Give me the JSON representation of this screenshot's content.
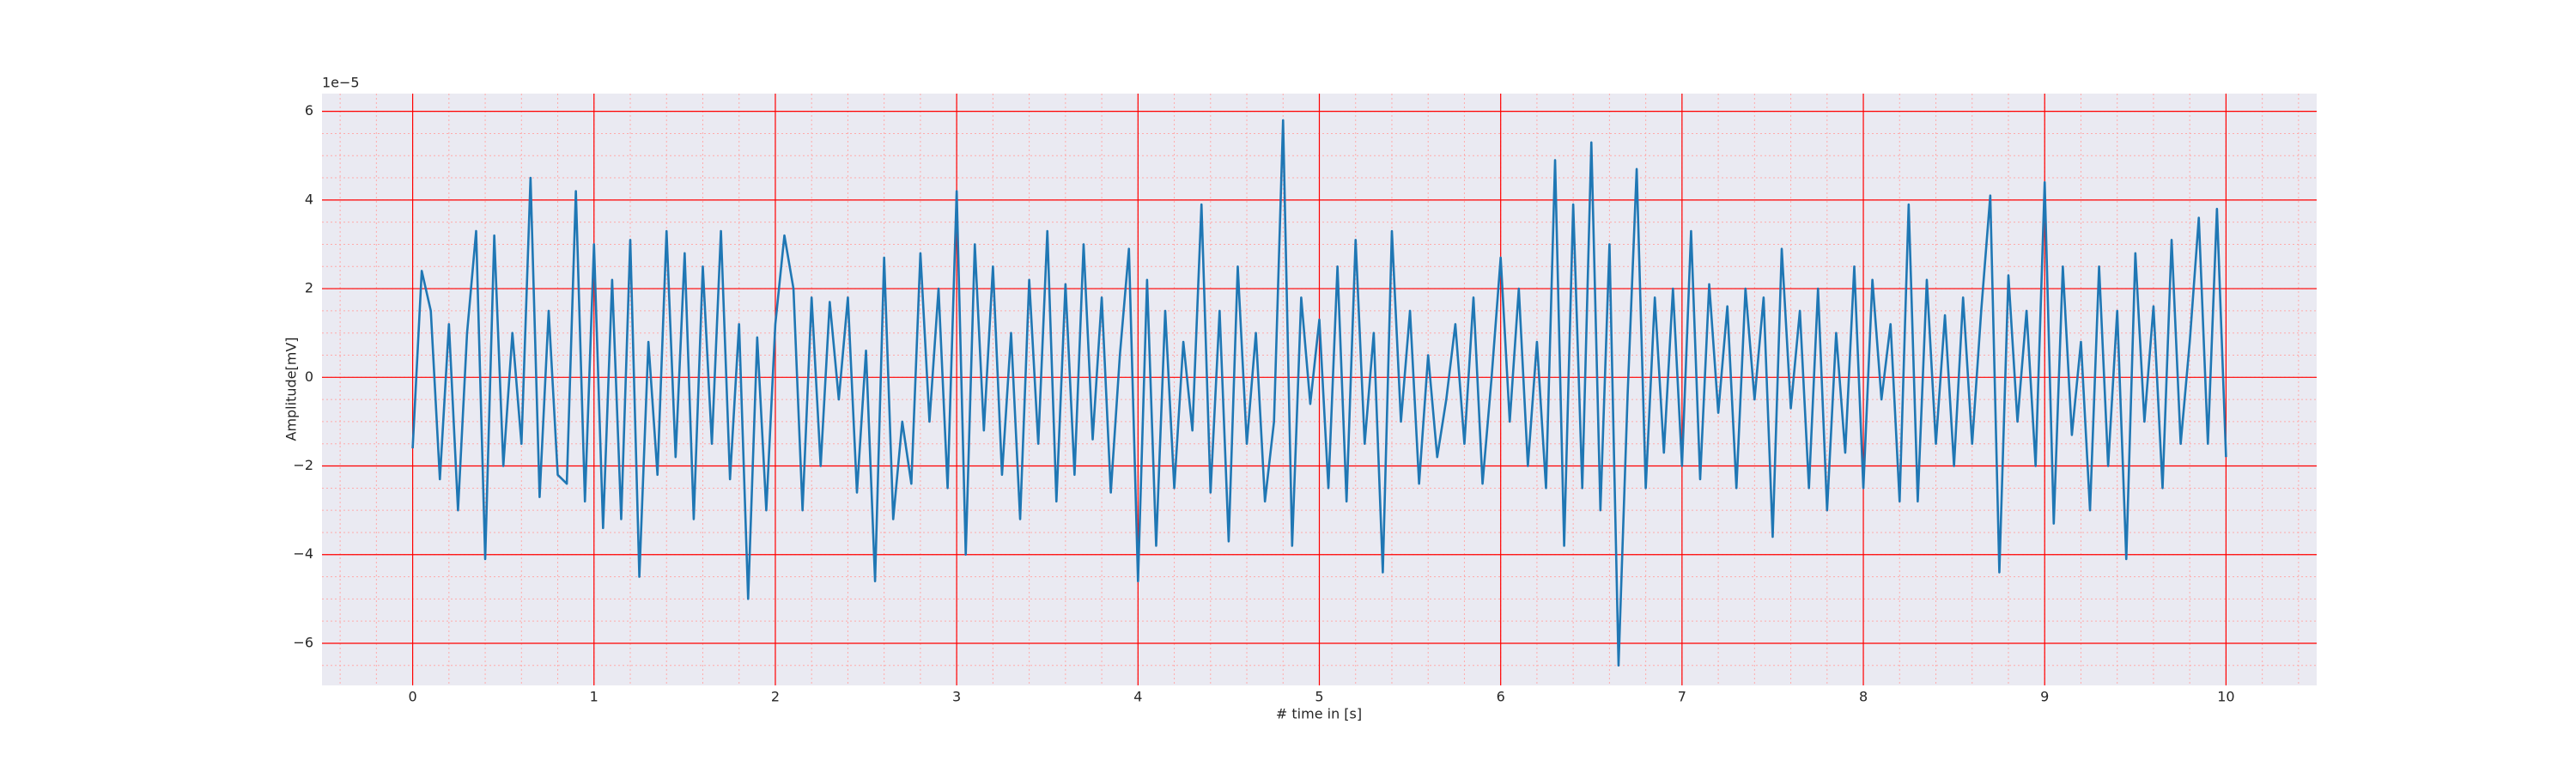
{
  "chart_data": {
    "type": "line",
    "xlabel": "# time in [s]",
    "ylabel": "Amplitude[mV]",
    "y_offset_label": "1e−5",
    "color": "#1f77b4",
    "background": "#eaeaf2",
    "grid": true,
    "grid_color": "#ff0000",
    "minor_grid": {
      "x_step": 0.2,
      "y_step": 0.5,
      "color": "#ffaaaa"
    },
    "xlim": [
      -0.5,
      10.5
    ],
    "ylim": [
      -6.95,
      6.4
    ],
    "xticks": [
      0,
      1,
      2,
      3,
      4,
      5,
      6,
      7,
      8,
      9,
      10
    ],
    "yticks": [
      {
        "value": -6,
        "label": "−6"
      },
      {
        "value": -4,
        "label": "−4"
      },
      {
        "value": -2,
        "label": "−2"
      },
      0,
      2,
      4,
      6
    ],
    "x": [
      0,
      0.05,
      0.1,
      0.15,
      0.2,
      0.25,
      0.3,
      0.35,
      0.4,
      0.45,
      0.5,
      0.55,
      0.6,
      0.65,
      0.7,
      0.75,
      0.8,
      0.85,
      0.9,
      0.95,
      1,
      1.05,
      1.1,
      1.15,
      1.2,
      1.25,
      1.3,
      1.35,
      1.4,
      1.45,
      1.5,
      1.55,
      1.6,
      1.65,
      1.7,
      1.75,
      1.8,
      1.85,
      1.9,
      1.95,
      2,
      2.05,
      2.1,
      2.15,
      2.2,
      2.25,
      2.3,
      2.35,
      2.4,
      2.45,
      2.5,
      2.55,
      2.6,
      2.65,
      2.7,
      2.75,
      2.8,
      2.85,
      2.9,
      2.95,
      3,
      3.05,
      3.1,
      3.15,
      3.2,
      3.25,
      3.3,
      3.35,
      3.4,
      3.45,
      3.5,
      3.55,
      3.6,
      3.65,
      3.7,
      3.75,
      3.8,
      3.85,
      3.9,
      3.95,
      4,
      4.05,
      4.1,
      4.15,
      4.2,
      4.25,
      4.3,
      4.35,
      4.4,
      4.45,
      4.5,
      4.55,
      4.6,
      4.65,
      4.7,
      4.75,
      4.8,
      4.85,
      4.9,
      4.95,
      5,
      5.05,
      5.1,
      5.15,
      5.2,
      5.25,
      5.3,
      5.35,
      5.4,
      5.45,
      5.5,
      5.55,
      5.6,
      5.65,
      5.7,
      5.75,
      5.8,
      5.85,
      5.9,
      5.95,
      6,
      6.05,
      6.1,
      6.15,
      6.2,
      6.25,
      6.3,
      6.35,
      6.4,
      6.45,
      6.5,
      6.55,
      6.6,
      6.65,
      6.7,
      6.75,
      6.8,
      6.85,
      6.9,
      6.95,
      7,
      7.05,
      7.1,
      7.15,
      7.2,
      7.25,
      7.3,
      7.35,
      7.4,
      7.45,
      7.5,
      7.55,
      7.6,
      7.65,
      7.7,
      7.75,
      7.8,
      7.85,
      7.9,
      7.95,
      8,
      8.05,
      8.1,
      8.15,
      8.2,
      8.25,
      8.3,
      8.35,
      8.4,
      8.45,
      8.5,
      8.55,
      8.6,
      8.65,
      8.7,
      8.75,
      8.8,
      8.85,
      8.9,
      8.95,
      9,
      9.05,
      9.1,
      9.15,
      9.2,
      9.25,
      9.3,
      9.35,
      9.4,
      9.45,
      9.5,
      9.55,
      9.6,
      9.65,
      9.7,
      9.75,
      9.8,
      9.85,
      9.9,
      9.95,
      10
    ],
    "values": [
      -1.6,
      2.4,
      1.5,
      -2.3,
      1.2,
      -3.0,
      1.0,
      3.3,
      -4.1,
      3.2,
      -2.0,
      1.0,
      -1.5,
      4.5,
      -2.7,
      1.5,
      -2.2,
      -2.4,
      4.2,
      -2.8,
      3.0,
      -3.4,
      2.2,
      -3.2,
      3.1,
      -4.5,
      0.8,
      -2.2,
      3.3,
      -1.8,
      2.8,
      -3.2,
      2.5,
      -1.5,
      3.3,
      -2.3,
      1.2,
      -5.0,
      0.9,
      -3.0,
      1.2,
      3.2,
      2.0,
      -3.0,
      1.8,
      -2.0,
      1.7,
      -0.5,
      1.8,
      -2.6,
      0.6,
      -4.6,
      2.7,
      -3.2,
      -1.0,
      -2.4,
      2.8,
      -1.0,
      2.0,
      -2.5,
      4.2,
      -4.0,
      3.0,
      -1.2,
      2.5,
      -2.2,
      1.0,
      -3.2,
      2.2,
      -1.5,
      3.3,
      -2.8,
      2.1,
      -2.2,
      3.0,
      -1.4,
      1.8,
      -2.6,
      0.5,
      2.9,
      -4.6,
      2.2,
      -3.8,
      1.5,
      -2.5,
      0.8,
      -1.2,
      3.9,
      -2.6,
      1.5,
      -3.7,
      2.5,
      -1.5,
      1.0,
      -2.8,
      -1.0,
      5.8,
      -3.8,
      1.8,
      -0.6,
      1.3,
      -2.5,
      2.5,
      -2.8,
      3.1,
      -1.5,
      1.0,
      -4.4,
      3.3,
      -1.0,
      1.5,
      -2.4,
      0.5,
      -1.8,
      -0.5,
      1.2,
      -1.5,
      1.8,
      -2.4,
      0.0,
      2.7,
      -1.0,
      2.0,
      -2.0,
      0.8,
      -2.5,
      4.9,
      -3.8,
      3.9,
      -2.5,
      5.3,
      -3.0,
      3.0,
      -6.5,
      -0.4,
      4.7,
      -2.5,
      1.8,
      -1.7,
      2.0,
      -2.0,
      3.3,
      -2.3,
      2.1,
      -0.8,
      1.6,
      -2.5,
      2.0,
      -0.5,
      1.8,
      -3.6,
      2.9,
      -0.7,
      1.5,
      -2.5,
      2.0,
      -3.0,
      1.0,
      -1.7,
      2.5,
      -2.5,
      2.2,
      -0.5,
      1.2,
      -2.8,
      3.9,
      -2.8,
      2.2,
      -1.5,
      1.4,
      -2.0,
      1.8,
      -1.5,
      1.5,
      4.1,
      -4.4,
      2.3,
      -1.0,
      1.5,
      -2.0,
      4.4,
      -3.3,
      2.5,
      -1.3,
      0.8,
      -3.0,
      2.5,
      -2.0,
      1.5,
      -4.1,
      2.8,
      -1.0,
      1.6,
      -2.5,
      3.1,
      -1.5,
      0.8,
      3.6,
      -1.5,
      3.8,
      -1.8
    ]
  }
}
